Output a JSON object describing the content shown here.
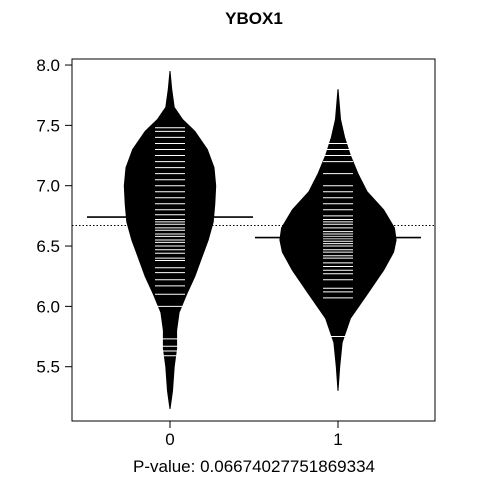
{
  "chart_data": {
    "type": "beanplot",
    "title": "YBOX1",
    "xlabel": "P-value: 0.06674027751869334",
    "ylabel": "",
    "categories": [
      "0",
      "1"
    ],
    "ylim": [
      5.05,
      8.05
    ],
    "yticks": [
      5.5,
      6.0,
      6.5,
      7.0,
      7.5,
      8.0
    ],
    "ytick_labels": [
      "5.5",
      "6.0",
      "6.5",
      "7.0",
      "7.5",
      "8.0"
    ],
    "overall_mean": 6.67,
    "grid": false,
    "legend": "none",
    "colors": {
      "bean_fill": "#000000",
      "beanline": "#ffffff",
      "axis": "#000000"
    },
    "groups": [
      {
        "category": "0",
        "mean": 6.74,
        "density": [
          [
            5.15,
            0.0
          ],
          [
            5.3,
            0.03
          ],
          [
            5.5,
            0.05
          ],
          [
            5.65,
            0.08
          ],
          [
            5.8,
            0.08
          ],
          [
            5.95,
            0.11
          ],
          [
            6.1,
            0.2
          ],
          [
            6.25,
            0.3
          ],
          [
            6.4,
            0.38
          ],
          [
            6.55,
            0.46
          ],
          [
            6.7,
            0.52
          ],
          [
            6.85,
            0.54
          ],
          [
            7.0,
            0.55
          ],
          [
            7.15,
            0.53
          ],
          [
            7.3,
            0.45
          ],
          [
            7.45,
            0.3
          ],
          [
            7.55,
            0.15
          ],
          [
            7.65,
            0.05
          ],
          [
            7.8,
            0.02
          ],
          [
            7.95,
            0.0
          ]
        ],
        "observations": [
          5.59,
          5.63,
          5.67,
          5.73,
          6.0,
          6.1,
          6.17,
          6.22,
          6.28,
          6.32,
          6.38,
          6.4,
          6.44,
          6.47,
          6.5,
          6.53,
          6.55,
          6.58,
          6.6,
          6.63,
          6.65,
          6.68,
          6.7,
          6.72,
          6.74,
          6.76,
          6.8,
          6.85,
          6.9,
          6.95,
          7.0,
          7.05,
          7.1,
          7.15,
          7.2,
          7.25,
          7.3,
          7.35,
          7.4,
          7.45,
          7.48
        ]
      },
      {
        "category": "1",
        "mean": 6.57,
        "density": [
          [
            5.3,
            0.0
          ],
          [
            5.5,
            0.02
          ],
          [
            5.7,
            0.05
          ],
          [
            5.9,
            0.15
          ],
          [
            6.1,
            0.35
          ],
          [
            6.3,
            0.55
          ],
          [
            6.45,
            0.67
          ],
          [
            6.55,
            0.7
          ],
          [
            6.65,
            0.68
          ],
          [
            6.8,
            0.55
          ],
          [
            6.95,
            0.35
          ],
          [
            7.1,
            0.24
          ],
          [
            7.25,
            0.15
          ],
          [
            7.4,
            0.08
          ],
          [
            7.55,
            0.03
          ],
          [
            7.8,
            0.0
          ]
        ],
        "observations": [
          5.75,
          6.07,
          6.12,
          6.15,
          6.22,
          6.27,
          6.3,
          6.33,
          6.36,
          6.4,
          6.42,
          6.45,
          6.47,
          6.5,
          6.52,
          6.54,
          6.56,
          6.58,
          6.6,
          6.62,
          6.65,
          6.68,
          6.7,
          6.72,
          6.75,
          6.8,
          6.85,
          6.9,
          6.95,
          7.0,
          7.1,
          7.2,
          7.25,
          7.3,
          7.35
        ]
      }
    ]
  }
}
